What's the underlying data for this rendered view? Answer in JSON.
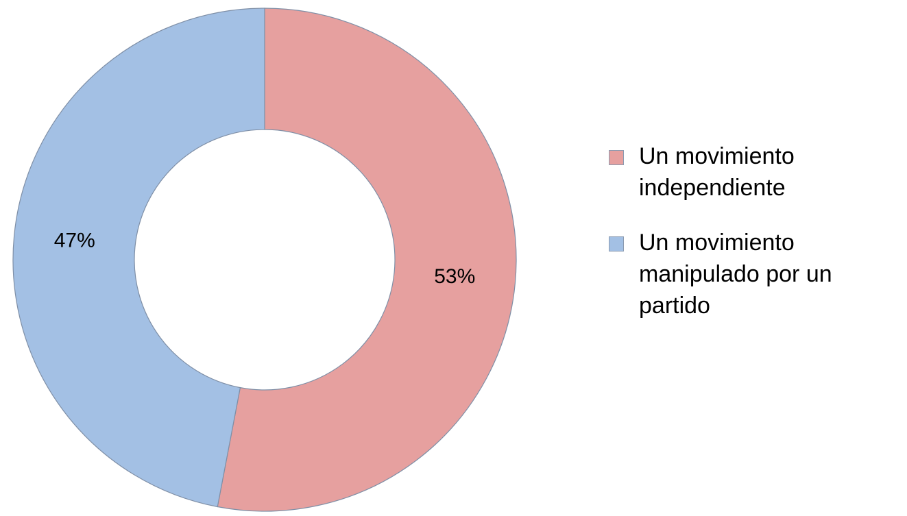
{
  "chart_data": {
    "type": "donut",
    "categories": [
      "Un movimiento independiente",
      "Un movimiento manipulado por un partido"
    ],
    "values": [
      53,
      47
    ],
    "value_labels": [
      "53%",
      "47%"
    ],
    "colors": [
      "#e6a09f",
      "#a3c0e4"
    ],
    "legend": "right"
  }
}
